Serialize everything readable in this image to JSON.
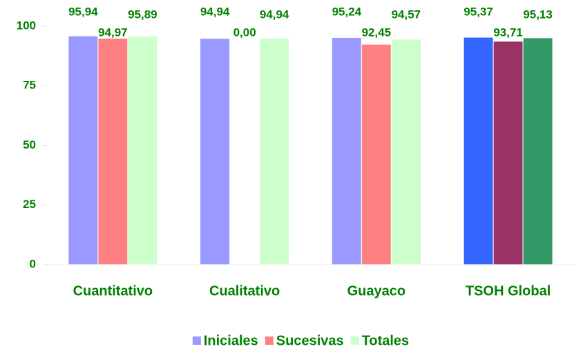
{
  "chart_data": {
    "type": "bar",
    "categories": [
      "Cuantitativo",
      "Cualitativo",
      "Guayaco",
      "TSOH Global"
    ],
    "series": [
      {
        "name": "Iniciales",
        "color": "#9999ff",
        "colors": [
          "#9999ff",
          "#9999ff",
          "#9999ff",
          "#3366ff"
        ],
        "values": [
          95.94,
          94.94,
          95.24,
          95.37
        ],
        "value_labels": [
          "95,94",
          "94,94",
          "95,24",
          "95,37"
        ]
      },
      {
        "name": "Sucesivas",
        "color": "#ff8080",
        "colors": [
          "#ff8080",
          "#ff8080",
          "#ff8080",
          "#993366"
        ],
        "values": [
          94.97,
          0,
          92.45,
          93.71
        ],
        "value_labels": [
          "94,97",
          "0,00",
          "92,45",
          "93,71"
        ]
      },
      {
        "name": "Totales",
        "color": "#ccffcc",
        "colors": [
          "#ccffcc",
          "#ccffcc",
          "#ccffcc",
          "#339966"
        ],
        "values": [
          95.89,
          94.94,
          94.57,
          95.13
        ],
        "value_labels": [
          "95,89",
          "94,94",
          "94,57",
          "95,13"
        ]
      }
    ],
    "ylim": [
      0,
      100
    ],
    "yticks": [
      0,
      25,
      50,
      75,
      100
    ],
    "grid": false,
    "legend": "bottom"
  }
}
